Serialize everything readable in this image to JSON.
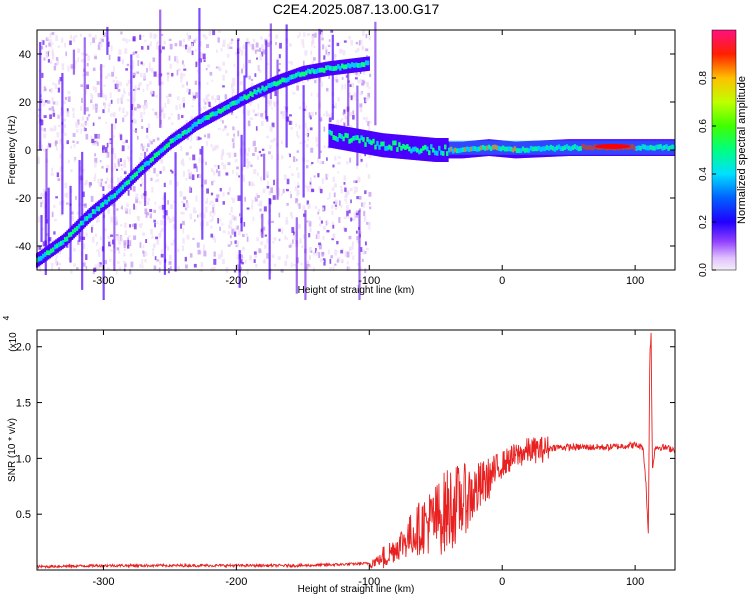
{
  "title": "C2E4.2025.087.13.00.G17",
  "colorbar": {
    "label": "Normalized spectral amplitude",
    "ticks": [
      "0.0",
      "0.2",
      "0.4",
      "0.6",
      "0.8"
    ]
  },
  "chart_data": [
    {
      "type": "heatmap",
      "title": "C2E4.2025.087.13.00.G17",
      "xlabel": "Height of straight line (km)",
      "ylabel": "Frequency (Hz)",
      "xlim": [
        -350,
        130
      ],
      "ylim": [
        -50,
        50
      ],
      "xticks": [
        -300,
        -200,
        -100,
        0,
        100
      ],
      "yticks": [
        -40,
        -20,
        0,
        20,
        40
      ],
      "value_label": "Normalized spectral amplitude",
      "value_range": [
        0,
        1
      ],
      "colormap": [
        "#f0e0f8",
        "#c8a0f0",
        "#7a2fe8",
        "#4b00ff",
        "#0000ff",
        "#00c8ff",
        "#00ff80",
        "#40ff00",
        "#ffff00",
        "#ff8000",
        "#ff0000",
        "#ff0080"
      ],
      "ridges": [
        {
          "x": [
            -350,
            -330,
            -310,
            -290,
            -270,
            -250,
            -230,
            -210,
            -190,
            -170,
            -150,
            -130,
            -100
          ],
          "y": [
            -46,
            -38,
            -27,
            -18,
            -7,
            3,
            11,
            17,
            23,
            28,
            32,
            34,
            36
          ]
        },
        {
          "x": [
            -130,
            -110,
            -90,
            -70,
            -50,
            -30,
            -10,
            10,
            50,
            90,
            110,
            130
          ],
          "y": [
            6,
            4,
            2,
            1,
            0,
            0,
            1,
            0,
            1,
            1,
            1,
            1
          ]
        }
      ]
    },
    {
      "type": "line",
      "title": "",
      "xlabel": "Height of straight line (km)",
      "ylabel": "SNR (10 * v/v)",
      "scale_label": "(x10",
      "scale_exp": "4",
      "xlim": [
        -350,
        130
      ],
      "ylim": [
        0,
        2.15
      ],
      "xticks": [
        -300,
        -200,
        -100,
        0,
        100
      ],
      "yticks": [
        0.5,
        1.0,
        1.5,
        2.0
      ],
      "ytick_labels": [
        "0.5",
        "1.0",
        "1.5",
        "2.0"
      ],
      "color": "#e82020",
      "series": [
        {
          "x": [
            -350,
            -300,
            -250,
            -200,
            -150,
            -120,
            -100,
            -90,
            -80,
            -70,
            -60,
            -50,
            -40,
            -30,
            -20,
            -10,
            0,
            10,
            20,
            30,
            40,
            60,
            80,
            100,
            106,
            108,
            110,
            111,
            112,
            113,
            115,
            120,
            130
          ],
          "y": [
            0.03,
            0.04,
            0.04,
            0.04,
            0.04,
            0.05,
            0.06,
            0.1,
            0.2,
            0.3,
            0.4,
            0.45,
            0.55,
            0.62,
            0.7,
            0.82,
            0.95,
            1.02,
            1.07,
            1.08,
            1.1,
            1.1,
            1.1,
            1.12,
            1.1,
            0.8,
            0.3,
            1.9,
            2.12,
            0.9,
            1.1,
            1.1,
            1.08
          ]
        }
      ]
    }
  ]
}
